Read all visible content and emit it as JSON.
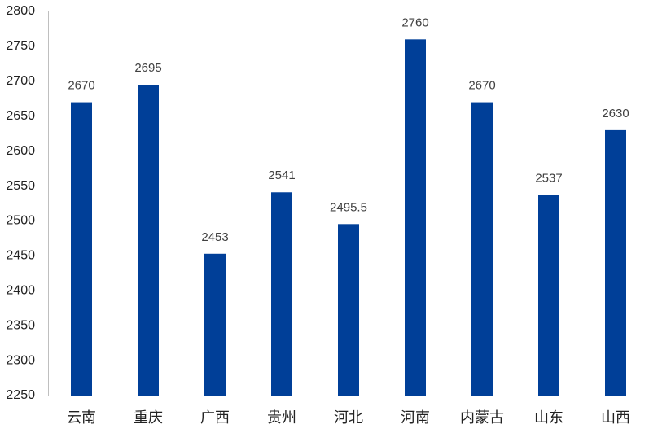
{
  "chart_data": {
    "type": "bar",
    "categories": [
      "云南",
      "重庆",
      "广西",
      "贵州",
      "河北",
      "河南",
      "内蒙古",
      "山东",
      "山西"
    ],
    "values": [
      2670,
      2695,
      2453,
      2541,
      2495.5,
      2760,
      2670,
      2537,
      2630
    ],
    "color": "#003f98",
    "ylim": [
      2250,
      2800
    ],
    "yticks": [
      2250,
      2300,
      2350,
      2400,
      2450,
      2500,
      2550,
      2600,
      2650,
      2700,
      2750,
      2800
    ],
    "grid": false
  }
}
